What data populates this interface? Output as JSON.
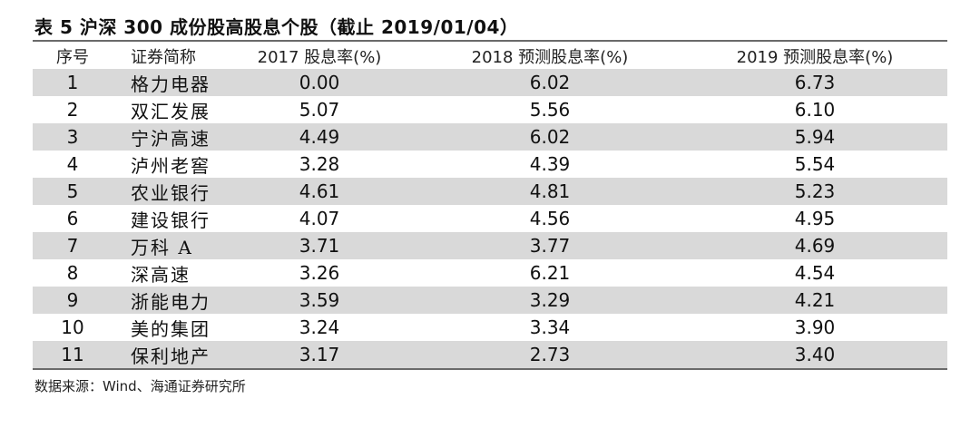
{
  "title": "表 5 沪深 300 成份股高股息个股（截止 2019/01/04）",
  "headers": {
    "index": "序号",
    "name": "证券简称",
    "y2017": "2017 股息率(%)",
    "y2018": "2018 预测股息率(%)",
    "y2019": "2019 预测股息率(%)"
  },
  "rows": [
    {
      "index": "1",
      "name": "格力电器",
      "y2017": "0.00",
      "y2018": "6.02",
      "y2019": "6.73"
    },
    {
      "index": "2",
      "name": "双汇发展",
      "y2017": "5.07",
      "y2018": "5.56",
      "y2019": "6.10"
    },
    {
      "index": "3",
      "name": "宁沪高速",
      "y2017": "4.49",
      "y2018": "6.02",
      "y2019": "5.94"
    },
    {
      "index": "4",
      "name": "泸州老窖",
      "y2017": "3.28",
      "y2018": "4.39",
      "y2019": "5.54"
    },
    {
      "index": "5",
      "name": "农业银行",
      "y2017": "4.61",
      "y2018": "4.81",
      "y2019": "5.23"
    },
    {
      "index": "6",
      "name": "建设银行",
      "y2017": "4.07",
      "y2018": "4.56",
      "y2019": "4.95"
    },
    {
      "index": "7",
      "name": "万科 A",
      "y2017": "3.71",
      "y2018": "3.77",
      "y2019": "4.69"
    },
    {
      "index": "8",
      "name": "深高速",
      "y2017": "3.26",
      "y2018": "6.21",
      "y2019": "4.54"
    },
    {
      "index": "9",
      "name": "浙能电力",
      "y2017": "3.59",
      "y2018": "3.29",
      "y2019": "4.21"
    },
    {
      "index": "10",
      "name": "美的集团",
      "y2017": "3.24",
      "y2018": "3.34",
      "y2019": "3.90"
    },
    {
      "index": "11",
      "name": "保利地产",
      "y2017": "3.17",
      "y2018": "2.73",
      "y2019": "3.40"
    }
  ],
  "source": "数据来源：Wind、海通证券研究所",
  "colors": {
    "shade": "#d9d9d9",
    "rule": "#6a6a6a"
  }
}
